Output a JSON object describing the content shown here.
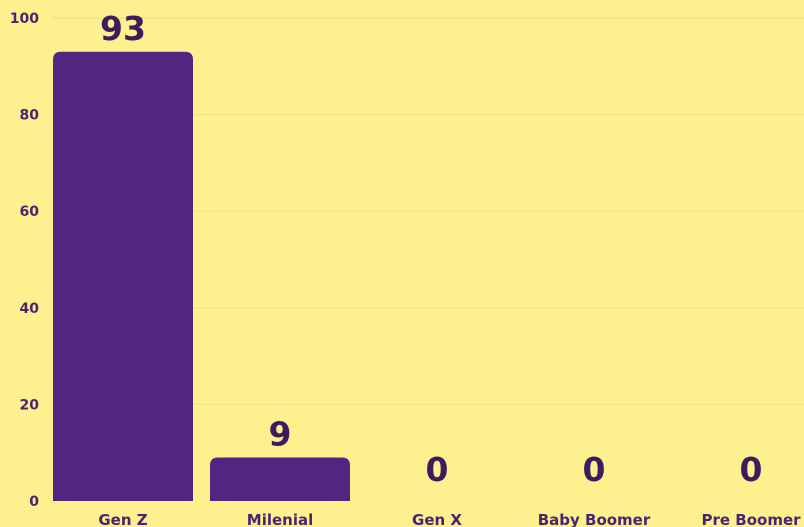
{
  "chart_data": {
    "type": "bar",
    "title": "",
    "xlabel": "",
    "ylabel": "",
    "categories": [
      "Gen Z",
      "Milenial",
      "Gen X",
      "Baby Boomer",
      "Pre Boomer"
    ],
    "values": [
      93,
      9,
      0,
      0,
      0
    ],
    "data_labels": [
      "93",
      "9",
      "0",
      "0",
      "0"
    ],
    "ylim": [
      0,
      100
    ],
    "yticks": [
      0,
      20,
      40,
      60,
      80,
      100
    ],
    "grid": true,
    "legend": "none",
    "colors": {
      "background": "#fdf08e",
      "bar": "#522680",
      "text": "#4a2470",
      "grid": "#efe085"
    }
  }
}
